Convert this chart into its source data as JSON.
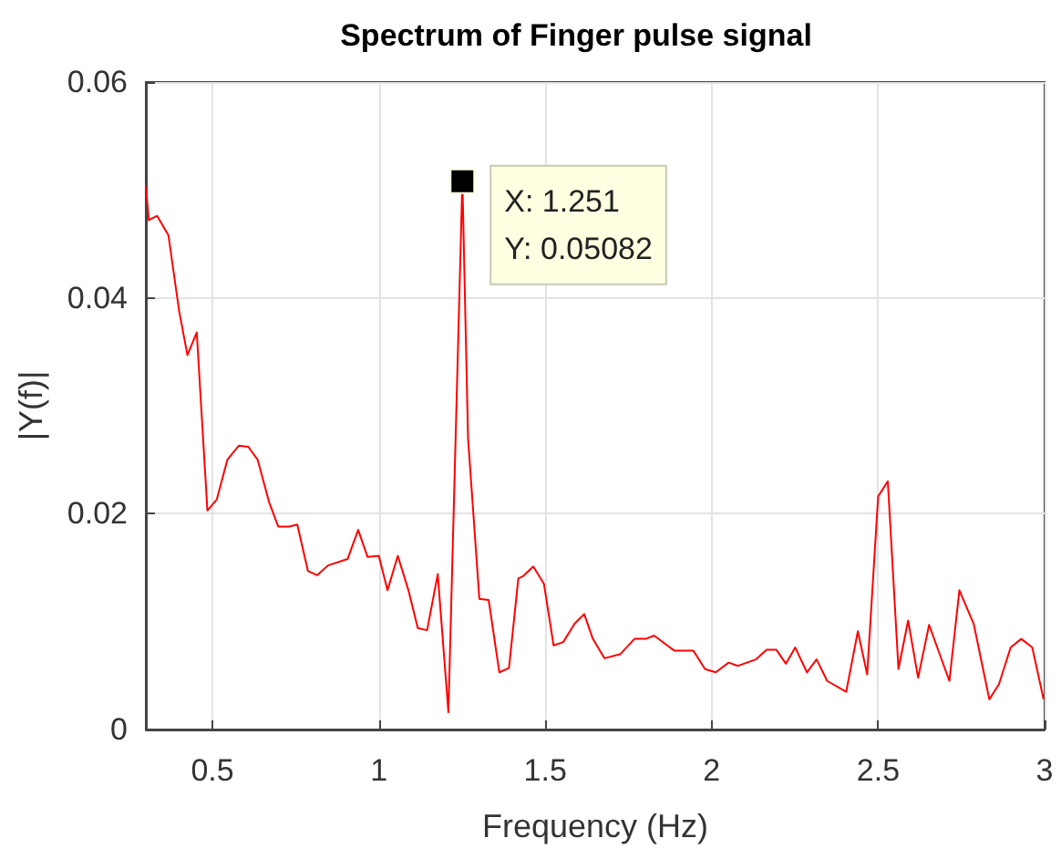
{
  "chart_data": {
    "type": "line",
    "title": "Spectrum of Finger pulse signal",
    "xlabel": "Frequency (Hz)",
    "ylabel": "|Y(f)|",
    "x": [
      0.3,
      0.309,
      0.334,
      0.368,
      0.4,
      0.425,
      0.453,
      0.485,
      0.513,
      0.545,
      0.579,
      0.608,
      0.636,
      0.67,
      0.698,
      0.73,
      0.755,
      0.787,
      0.815,
      0.847,
      0.906,
      0.938,
      0.966,
      1.0,
      1.026,
      1.057,
      1.089,
      1.117,
      1.145,
      1.177,
      1.209,
      1.251,
      1.268,
      1.302,
      1.33,
      1.362,
      1.391,
      1.419,
      1.433,
      1.464,
      1.496,
      1.525,
      1.554,
      1.588,
      1.617,
      1.643,
      1.678,
      1.726,
      1.768,
      1.802,
      1.827,
      1.888,
      1.945,
      1.98,
      2.012,
      2.051,
      2.079,
      2.133,
      2.165,
      2.194,
      2.223,
      2.251,
      2.286,
      2.315,
      2.347,
      2.404,
      2.439,
      2.467,
      2.5,
      2.529,
      2.561,
      2.59,
      2.62,
      2.653,
      2.714,
      2.744,
      2.787,
      2.834,
      2.863,
      2.898,
      2.93,
      2.963,
      2.997
    ],
    "series": [
      {
        "color": "#ff0000",
        "values": [
          0.0504,
          0.0472,
          0.0476,
          0.0458,
          0.0388,
          0.0347,
          0.0368,
          0.0203,
          0.0213,
          0.025,
          0.0263,
          0.0262,
          0.025,
          0.0211,
          0.0188,
          0.0188,
          0.019,
          0.0147,
          0.0143,
          0.0152,
          0.0158,
          0.0185,
          0.016,
          0.0161,
          0.0129,
          0.0161,
          0.0129,
          0.0094,
          0.0092,
          0.0144,
          0.0016,
          0.05082,
          0.027,
          0.0121,
          0.012,
          0.0053,
          0.0057,
          0.014,
          0.0142,
          0.0151,
          0.0135,
          0.0078,
          0.0081,
          0.0098,
          0.0107,
          0.0084,
          0.0066,
          0.007,
          0.0084,
          0.0084,
          0.0087,
          0.0073,
          0.0073,
          0.0056,
          0.0053,
          0.0062,
          0.0059,
          0.0065,
          0.0074,
          0.0074,
          0.0061,
          0.0076,
          0.0053,
          0.0065,
          0.0045,
          0.0035,
          0.0091,
          0.0051,
          0.0216,
          0.023,
          0.0056,
          0.0101,
          0.0048,
          0.0097,
          0.0045,
          0.0129,
          0.0098,
          0.0028,
          0.0042,
          0.0076,
          0.0084,
          0.0076,
          0.0028
        ]
      }
    ],
    "annotations": [
      {
        "text": "X: 1.251\nY: 0.05082",
        "x": 1.251,
        "y": 0.05082
      }
    ],
    "xlim": [
      0.3,
      3
    ],
    "xticks": [
      0.5,
      1,
      1.5,
      2,
      2.5,
      3
    ],
    "ylim": [
      0,
      0.06
    ],
    "yticks": [
      0,
      0.02,
      0.04,
      0.06
    ],
    "grid": true,
    "marker": "none",
    "line_style": "solid"
  }
}
